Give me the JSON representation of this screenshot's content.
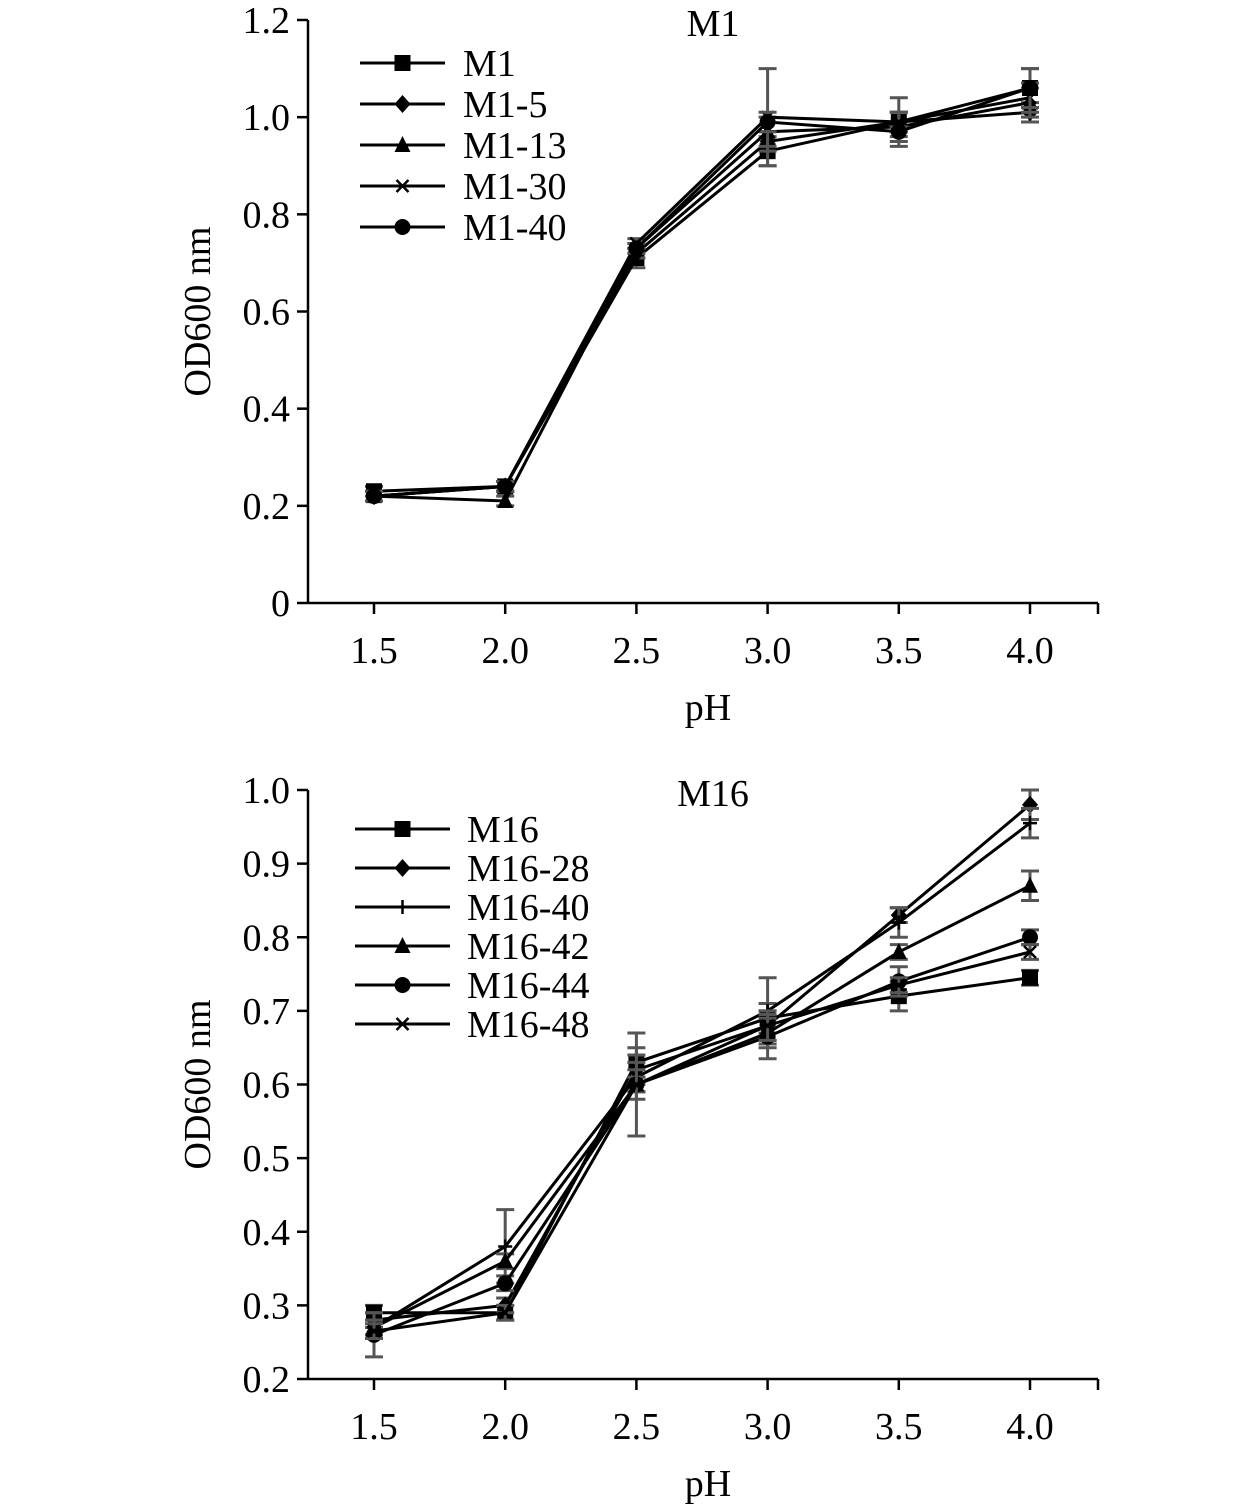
{
  "chart_data": [
    {
      "type": "line",
      "title": "M1",
      "xlabel": "pH",
      "ylabel": "OD600 nm",
      "x": [
        1.5,
        2.0,
        2.5,
        3.0,
        3.5,
        4.0
      ],
      "x_tick_labels": [
        "1.5",
        "2.0",
        "2.5",
        "3.0",
        "3.5",
        "4.0"
      ],
      "ylim": [
        0,
        1.2
      ],
      "y_ticks": [
        0,
        0.2,
        0.4,
        0.6,
        0.8,
        1.0,
        1.2
      ],
      "y_tick_labels": [
        "0",
        "0.2",
        "0.4",
        "0.6",
        "0.8",
        "1.0",
        "1.2"
      ],
      "legend_position": "top-left",
      "grid": false,
      "series": [
        {
          "name": "M1",
          "marker": "square",
          "values": [
            0.23,
            0.24,
            0.71,
            0.93,
            0.99,
            1.06
          ],
          "errors": [
            0.01,
            0.01,
            0.02,
            0.03,
            0.05,
            0.04
          ]
        },
        {
          "name": "M1-5",
          "marker": "diamond",
          "values": [
            0.22,
            0.24,
            0.72,
            0.95,
            0.99,
            1.01
          ],
          "errors": [
            0.01,
            0.01,
            0.01,
            0.02,
            0.02,
            0.02
          ]
        },
        {
          "name": "M1-13",
          "marker": "triangle",
          "values": [
            0.22,
            0.21,
            0.73,
            0.97,
            0.98,
            1.03
          ],
          "errors": [
            0.01,
            0.01,
            0.01,
            0.03,
            0.03,
            0.03
          ]
        },
        {
          "name": "M1-30",
          "marker": "x",
          "values": [
            0.22,
            0.24,
            0.74,
            1.0,
            0.99,
            1.04
          ],
          "errors": [
            0.01,
            0.01,
            0.01,
            0.1,
            0.02,
            0.03
          ]
        },
        {
          "name": "M1-40",
          "marker": "circle",
          "values": [
            0.22,
            0.24,
            0.73,
            0.99,
            0.97,
            1.06
          ],
          "errors": [
            0.01,
            0.01,
            0.01,
            0.02,
            0.01,
            0.04
          ]
        }
      ]
    },
    {
      "type": "line",
      "title": "M16",
      "xlabel": "pH",
      "ylabel": "OD600 nm",
      "x": [
        1.5,
        2.0,
        2.5,
        3.0,
        3.5,
        4.0
      ],
      "x_tick_labels": [
        "1.5",
        "2.0",
        "2.5",
        "3.0",
        "3.5",
        "4.0"
      ],
      "ylim": [
        0.2,
        1.0
      ],
      "y_ticks": [
        0.2,
        0.3,
        0.4,
        0.5,
        0.6,
        0.7,
        0.8,
        0.9,
        1.0
      ],
      "y_tick_labels": [
        "0.2",
        "0.3",
        "0.4",
        "0.5",
        "0.6",
        "0.7",
        "0.8",
        "0.9",
        "1.0"
      ],
      "legend_position": "top-left",
      "grid": false,
      "series": [
        {
          "name": "M16",
          "marker": "square",
          "values": [
            0.29,
            0.29,
            0.63,
            0.69,
            0.72,
            0.745
          ],
          "errors": [
            0.01,
            0.01,
            0.02,
            0.02,
            0.02,
            0.01
          ]
        },
        {
          "name": "M16-28",
          "marker": "diamond",
          "values": [
            0.28,
            0.3,
            0.62,
            0.68,
            0.83,
            0.98
          ],
          "errors": [
            0.01,
            0.01,
            0.02,
            0.02,
            0.01,
            0.02
          ]
        },
        {
          "name": "M16-40",
          "marker": "plus",
          "values": [
            0.27,
            0.38,
            0.61,
            0.7,
            0.82,
            0.955
          ],
          "errors": [
            0.01,
            0.05,
            0.02,
            0.045,
            0.02,
            0.02
          ]
        },
        {
          "name": "M16-42",
          "marker": "triangle",
          "values": [
            0.27,
            0.36,
            0.6,
            0.67,
            0.78,
            0.87
          ],
          "errors": [
            0.01,
            0.01,
            0.01,
            0.02,
            0.01,
            0.02
          ]
        },
        {
          "name": "M16-44",
          "marker": "circle",
          "values": [
            0.26,
            0.33,
            0.6,
            0.665,
            0.74,
            0.8
          ],
          "errors": [
            0.03,
            0.01,
            0.07,
            0.03,
            0.02,
            0.01
          ]
        },
        {
          "name": "M16-48",
          "marker": "x",
          "values": [
            0.265,
            0.29,
            0.6,
            0.68,
            0.735,
            0.78
          ],
          "errors": [
            0.01,
            0.01,
            0.02,
            0.02,
            0.01,
            0.01
          ]
        }
      ]
    }
  ]
}
